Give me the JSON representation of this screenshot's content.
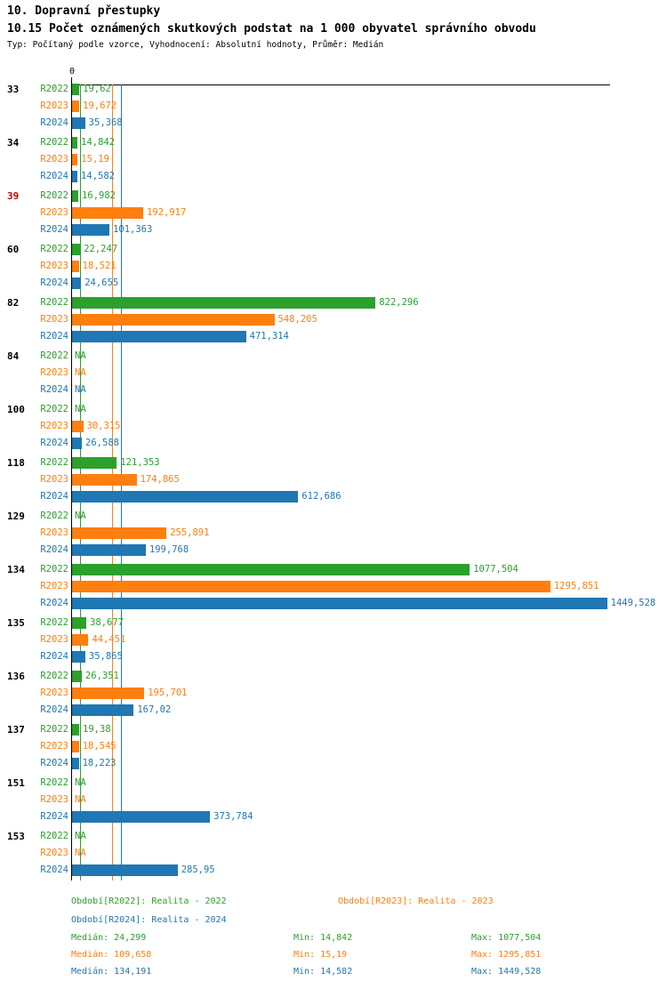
{
  "chart_data": {
    "type": "bar",
    "orientation": "horizontal",
    "title": "10. Dopravní přestupky",
    "subtitle": "10.15 Počet oznámených skutkových podstat na 1 000 obyvatel správního obvodu",
    "meta": "Typ: Počítaný podle vzorce, Vyhodnocení: Absolutní hodnoty, Průměr: Medián",
    "axis_zero_label": "0",
    "xlim": [
      0,
      1460
    ],
    "legend_position": "bottom",
    "grid": "median-lines-only",
    "series": [
      {
        "name": "R2022",
        "color": "#2ca02c",
        "legend_label": "Období[R2022]: Realita - 2022",
        "median": 24.299,
        "stats": {
          "median_label": "Medián: 24,299",
          "min_label": "Min: 14,842",
          "max_label": "Max: 1077,504"
        }
      },
      {
        "name": "R2023",
        "color": "#ff7f0e",
        "legend_label": "Období[R2023]: Realita - 2023",
        "median": 109.658,
        "stats": {
          "median_label": "Medián: 109,658",
          "min_label": "Min: 15,19",
          "max_label": "Max: 1295,851"
        }
      },
      {
        "name": "R2024",
        "color": "#1f77b4",
        "legend_label": "Období[R2024]: Realita - 2024",
        "median": 134.191,
        "stats": {
          "median_label": "Medián: 134,191",
          "min_label": "Min: 14,582",
          "max_label": "Max: 1449,528"
        }
      }
    ],
    "groups": [
      {
        "label": "33",
        "label_color": "#000000",
        "values": [
          19.62,
          19.672,
          35.368
        ],
        "labels": [
          "19,62",
          "19,672",
          "35,368"
        ]
      },
      {
        "label": "34",
        "label_color": "#000000",
        "values": [
          14.842,
          15.19,
          14.582
        ],
        "labels": [
          "14,842",
          "15,19",
          "14,582"
        ]
      },
      {
        "label": "39",
        "label_color": "#c00000",
        "values": [
          16.982,
          192.917,
          101.363
        ],
        "labels": [
          "16,982",
          "192,917",
          "101,363"
        ]
      },
      {
        "label": "60",
        "label_color": "#000000",
        "values": [
          22.247,
          18.521,
          24.655
        ],
        "labels": [
          "22,247",
          "18,521",
          "24,655"
        ]
      },
      {
        "label": "82",
        "label_color": "#000000",
        "values": [
          822.296,
          548.205,
          471.314
        ],
        "labels": [
          "822,296",
          "548,205",
          "471,314"
        ]
      },
      {
        "label": "84",
        "label_color": "#000000",
        "values": [
          null,
          null,
          null
        ],
        "labels": [
          "NA",
          "NA",
          "NA"
        ]
      },
      {
        "label": "100",
        "label_color": "#000000",
        "values": [
          null,
          30.315,
          26.588
        ],
        "labels": [
          "NA",
          "30,315",
          "26,588"
        ]
      },
      {
        "label": "118",
        "label_color": "#000000",
        "values": [
          121.353,
          174.865,
          612.686
        ],
        "labels": [
          "121,353",
          "174,865",
          "612,686"
        ]
      },
      {
        "label": "129",
        "label_color": "#000000",
        "values": [
          null,
          255.891,
          199.768
        ],
        "labels": [
          "NA",
          "255,891",
          "199,768"
        ]
      },
      {
        "label": "134",
        "label_color": "#000000",
        "values": [
          1077.504,
          1295.851,
          1449.528
        ],
        "labels": [
          "1077,504",
          "1295,851",
          "1449,528"
        ]
      },
      {
        "label": "135",
        "label_color": "#000000",
        "values": [
          38.677,
          44.451,
          35.865
        ],
        "labels": [
          "38,677",
          "44,451",
          "35,865"
        ]
      },
      {
        "label": "136",
        "label_color": "#000000",
        "values": [
          26.351,
          195.701,
          167.02
        ],
        "labels": [
          "26,351",
          "195,701",
          "167,02"
        ]
      },
      {
        "label": "137",
        "label_color": "#000000",
        "values": [
          19.38,
          18.545,
          18.223
        ],
        "labels": [
          "19,38",
          "18,545",
          "18,223"
        ]
      },
      {
        "label": "151",
        "label_color": "#000000",
        "values": [
          null,
          null,
          373.784
        ],
        "labels": [
          "NA",
          "NA",
          "373,784"
        ]
      },
      {
        "label": "153",
        "label_color": "#000000",
        "values": [
          null,
          null,
          285.95
        ],
        "labels": [
          "NA",
          "NA",
          "285,95"
        ]
      }
    ]
  }
}
